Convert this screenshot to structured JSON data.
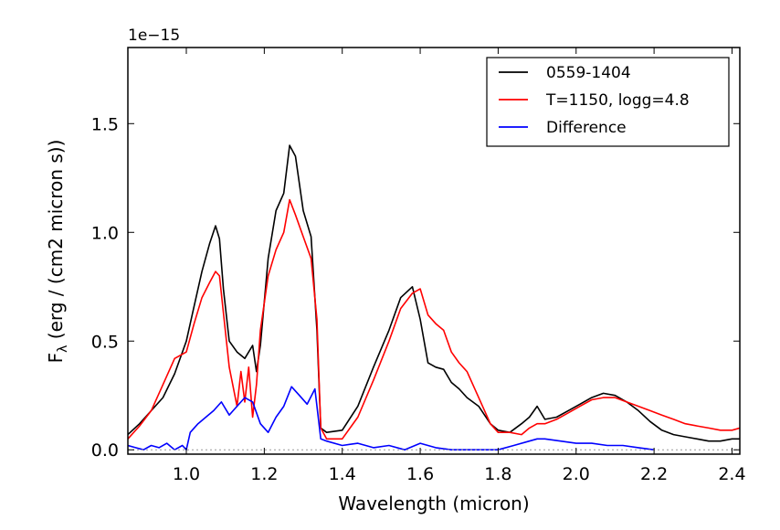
{
  "chart_data": {
    "type": "line",
    "offset_text": "1e−15",
    "xlabel": "Wavelength (micron)",
    "ylabel": "F",
    "ylabel_sub": "λ",
    "ylabel_rest": " (erg / (cm2 micron s))",
    "xlim": [
      0.85,
      2.42
    ],
    "ylim": [
      -0.02,
      1.85
    ],
    "xticks": [
      1.0,
      1.2,
      1.4,
      1.6,
      1.8,
      2.0,
      2.2,
      2.4
    ],
    "xtick_labels": [
      "1.0",
      "1.2",
      "1.4",
      "1.6",
      "1.8",
      "2.0",
      "2.2",
      "2.4"
    ],
    "yticks": [
      0.0,
      0.5,
      1.0,
      1.5
    ],
    "ytick_labels": [
      "0.0",
      "0.5",
      "1.0",
      "1.5"
    ],
    "legend_position": "top-right",
    "zero_line": {
      "y": 0.0,
      "style": "dotted",
      "color": "#999999"
    },
    "series": [
      {
        "name": "0559-1404",
        "color": "#000000",
        "x": [
          0.85,
          0.88,
          0.91,
          0.94,
          0.97,
          1.0,
          1.02,
          1.04,
          1.06,
          1.075,
          1.085,
          1.095,
          1.11,
          1.13,
          1.15,
          1.17,
          1.18,
          1.19,
          1.21,
          1.23,
          1.25,
          1.265,
          1.28,
          1.3,
          1.32,
          1.335,
          1.345,
          1.36,
          1.4,
          1.44,
          1.48,
          1.52,
          1.55,
          1.58,
          1.6,
          1.62,
          1.64,
          1.66,
          1.68,
          1.7,
          1.72,
          1.75,
          1.78,
          1.8,
          1.83,
          1.86,
          1.88,
          1.9,
          1.92,
          1.95,
          1.98,
          2.01,
          2.04,
          2.07,
          2.1,
          2.13,
          2.16,
          2.19,
          2.22,
          2.25,
          2.28,
          2.31,
          2.34,
          2.37,
          2.4,
          2.42
        ],
        "values": [
          0.07,
          0.12,
          0.18,
          0.24,
          0.35,
          0.5,
          0.66,
          0.82,
          0.95,
          1.03,
          0.97,
          0.74,
          0.5,
          0.45,
          0.42,
          0.48,
          0.36,
          0.48,
          0.88,
          1.1,
          1.18,
          1.4,
          1.35,
          1.1,
          0.98,
          0.55,
          0.1,
          0.08,
          0.09,
          0.2,
          0.38,
          0.55,
          0.7,
          0.75,
          0.6,
          0.4,
          0.38,
          0.37,
          0.31,
          0.28,
          0.24,
          0.2,
          0.12,
          0.09,
          0.08,
          0.12,
          0.15,
          0.2,
          0.14,
          0.15,
          0.18,
          0.21,
          0.24,
          0.26,
          0.25,
          0.22,
          0.18,
          0.13,
          0.09,
          0.07,
          0.06,
          0.05,
          0.04,
          0.04,
          0.05,
          0.05
        ]
      },
      {
        "name": "T=1150, logg=4.8",
        "color": "#ff0000",
        "x": [
          0.85,
          0.88,
          0.91,
          0.94,
          0.97,
          1.0,
          1.02,
          1.04,
          1.06,
          1.075,
          1.085,
          1.095,
          1.11,
          1.13,
          1.14,
          1.15,
          1.16,
          1.17,
          1.18,
          1.19,
          1.21,
          1.23,
          1.25,
          1.265,
          1.28,
          1.3,
          1.32,
          1.335,
          1.345,
          1.36,
          1.4,
          1.44,
          1.48,
          1.52,
          1.55,
          1.58,
          1.6,
          1.62,
          1.64,
          1.66,
          1.68,
          1.7,
          1.72,
          1.75,
          1.78,
          1.8,
          1.83,
          1.86,
          1.88,
          1.9,
          1.92,
          1.95,
          1.98,
          2.01,
          2.04,
          2.07,
          2.1,
          2.13,
          2.16,
          2.19,
          2.22,
          2.25,
          2.28,
          2.31,
          2.34,
          2.37,
          2.4,
          2.42
        ],
        "values": [
          0.05,
          0.11,
          0.18,
          0.3,
          0.42,
          0.45,
          0.58,
          0.7,
          0.77,
          0.82,
          0.8,
          0.63,
          0.38,
          0.2,
          0.36,
          0.22,
          0.38,
          0.15,
          0.3,
          0.55,
          0.8,
          0.92,
          1.0,
          1.15,
          1.08,
          0.98,
          0.88,
          0.6,
          0.1,
          0.05,
          0.05,
          0.15,
          0.32,
          0.5,
          0.65,
          0.72,
          0.74,
          0.62,
          0.58,
          0.55,
          0.45,
          0.4,
          0.36,
          0.24,
          0.12,
          0.08,
          0.08,
          0.07,
          0.1,
          0.12,
          0.12,
          0.14,
          0.17,
          0.2,
          0.23,
          0.24,
          0.24,
          0.22,
          0.2,
          0.18,
          0.16,
          0.14,
          0.12,
          0.11,
          0.1,
          0.09,
          0.09,
          0.1
        ]
      },
      {
        "name": "Difference",
        "color": "#0000ff",
        "x": [
          0.85,
          0.87,
          0.89,
          0.91,
          0.93,
          0.95,
          0.97,
          0.99,
          1.0,
          1.01,
          1.03,
          1.05,
          1.07,
          1.09,
          1.11,
          1.13,
          1.15,
          1.17,
          1.19,
          1.21,
          1.23,
          1.25,
          1.27,
          1.29,
          1.31,
          1.33,
          1.345,
          1.36,
          1.4,
          1.44,
          1.48,
          1.52,
          1.56,
          1.6,
          1.64,
          1.68,
          1.72,
          1.76,
          1.8,
          1.84,
          1.88,
          1.9,
          1.92,
          1.96,
          2.0,
          2.04,
          2.08,
          2.12,
          2.16,
          2.2
        ],
        "values": [
          0.02,
          0.01,
          0.0,
          0.02,
          0.01,
          0.03,
          0.0,
          0.02,
          0.0,
          0.08,
          0.12,
          0.15,
          0.18,
          0.22,
          0.16,
          0.2,
          0.24,
          0.22,
          0.12,
          0.08,
          0.15,
          0.2,
          0.29,
          0.25,
          0.21,
          0.28,
          0.05,
          0.04,
          0.02,
          0.03,
          0.01,
          0.02,
          0.0,
          0.03,
          0.01,
          0.0,
          0.0,
          0.0,
          0.0,
          0.02,
          0.04,
          0.05,
          0.05,
          0.04,
          0.03,
          0.03,
          0.02,
          0.02,
          0.01,
          0.0
        ]
      }
    ]
  }
}
